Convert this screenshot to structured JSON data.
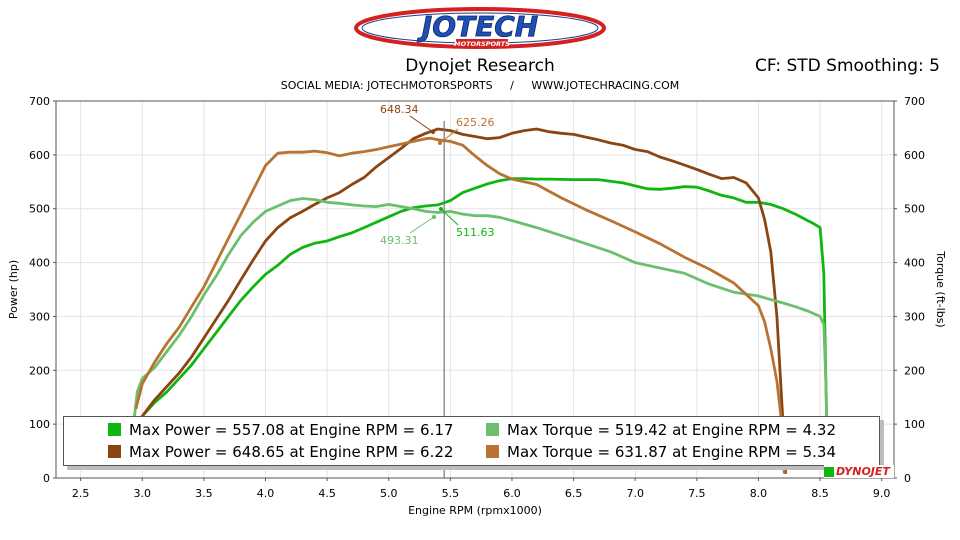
{
  "header": {
    "title": "Dynojet Research",
    "cf": "CF: STD Smoothing: 5",
    "social": "SOCIAL MEDIA: JOTECHMOTORSPORTS     /     WWW.JOTECHRACING.COM",
    "logo_text": "JOTECH",
    "logo_sub": "MOTORSPORTS"
  },
  "badge": {
    "dynojet": "DYNOJET"
  },
  "chart_data": {
    "type": "line",
    "xlabel": "Engine RPM (rpmx1000)",
    "ylabel": "Power (hp)",
    "y2label": "Torque (ft-lbs)",
    "xlim": [
      2.3,
      9.1
    ],
    "ylim": [
      0,
      700
    ],
    "xticks": [
      2.5,
      3.0,
      3.5,
      4.0,
      4.5,
      5.0,
      5.5,
      6.0,
      6.5,
      7.0,
      7.5,
      8.0,
      8.5,
      9.0
    ],
    "xtick_labels": [
      "2.5",
      "3.0",
      "3.5",
      "4.0",
      "4.5",
      "5.0",
      "5.5",
      "6.0",
      "6.5",
      "7.0",
      "7.5",
      "8.0",
      "8.5",
      "9.0"
    ],
    "yticks": [
      0,
      100,
      200,
      300,
      400,
      500,
      600,
      700
    ],
    "ytick_labels": [
      "0",
      "100",
      "200",
      "300",
      "400",
      "500",
      "600",
      "700"
    ],
    "cursor_x": 5.45,
    "series": [
      {
        "color": "#11b511",
        "x": [
          2.93,
          3.0,
          3.1,
          3.2,
          3.3,
          3.4,
          3.5,
          3.6,
          3.7,
          3.8,
          3.9,
          4.0,
          4.1,
          4.2,
          4.3,
          4.4,
          4.5,
          4.6,
          4.7,
          4.8,
          4.9,
          5.0,
          5.1,
          5.2,
          5.3,
          5.4,
          5.5,
          5.6,
          5.7,
          5.8,
          5.9,
          6.0,
          6.1,
          6.2,
          6.3,
          6.5,
          6.7,
          6.9,
          7.1,
          7.2,
          7.3,
          7.4,
          7.5,
          7.6,
          7.7,
          7.8,
          7.9,
          8.0,
          8.1,
          8.2,
          8.3,
          8.4,
          8.45,
          8.5,
          8.53,
          8.55,
          8.56
        ],
        "y": [
          95,
          115,
          140,
          160,
          185,
          210,
          240,
          270,
          300,
          330,
          355,
          378,
          395,
          415,
          428,
          436,
          440,
          448,
          455,
          465,
          475,
          485,
          495,
          502,
          505,
          507,
          515,
          530,
          538,
          546,
          552,
          556,
          556,
          555,
          555,
          554,
          554,
          548,
          537,
          536,
          538,
          541,
          540,
          533,
          525,
          520,
          512,
          512,
          508,
          500,
          490,
          478,
          472,
          465,
          380,
          150,
          10
        ]
      },
      {
        "color": "#8b4513",
        "x": [
          2.95,
          3.0,
          3.1,
          3.2,
          3.3,
          3.4,
          3.5,
          3.6,
          3.7,
          3.8,
          3.9,
          4.0,
          4.1,
          4.2,
          4.3,
          4.4,
          4.5,
          4.6,
          4.7,
          4.8,
          4.9,
          5.0,
          5.1,
          5.2,
          5.3,
          5.4,
          5.5,
          5.6,
          5.7,
          5.8,
          5.9,
          6.0,
          6.1,
          6.2,
          6.3,
          6.4,
          6.5,
          6.6,
          6.7,
          6.8,
          6.9,
          7.0,
          7.1,
          7.2,
          7.3,
          7.4,
          7.5,
          7.6,
          7.7,
          7.8,
          7.9,
          8.0,
          8.05,
          8.1,
          8.15,
          8.18,
          8.21,
          8.22
        ],
        "y": [
          95,
          115,
          145,
          170,
          195,
          225,
          260,
          295,
          330,
          368,
          405,
          440,
          465,
          483,
          495,
          508,
          520,
          530,
          545,
          558,
          578,
          595,
          612,
          630,
          640,
          648,
          645,
          638,
          634,
          630,
          632,
          640,
          645,
          648,
          643,
          640,
          638,
          633,
          628,
          622,
          618,
          610,
          606,
          596,
          589,
          581,
          573,
          564,
          556,
          558,
          548,
          520,
          480,
          420,
          300,
          180,
          60,
          10
        ]
      },
      {
        "color": "#6cbf6c",
        "x": [
          2.93,
          2.96,
          3.0,
          3.1,
          3.2,
          3.3,
          3.4,
          3.5,
          3.6,
          3.7,
          3.8,
          3.9,
          4.0,
          4.1,
          4.2,
          4.3,
          4.4,
          4.5,
          4.6,
          4.7,
          4.8,
          4.9,
          5.0,
          5.1,
          5.2,
          5.3,
          5.4,
          5.5,
          5.6,
          5.7,
          5.8,
          5.9,
          6.0,
          6.2,
          6.4,
          6.6,
          6.8,
          7.0,
          7.2,
          7.4,
          7.6,
          7.8,
          8.0,
          8.2,
          8.3,
          8.4,
          8.5,
          8.53,
          8.55,
          8.56
        ],
        "y": [
          100,
          160,
          185,
          205,
          235,
          265,
          300,
          340,
          375,
          415,
          450,
          475,
          495,
          505,
          515,
          519,
          517,
          512,
          510,
          507,
          505,
          504,
          508,
          504,
          500,
          495,
          493,
          495,
          490,
          487,
          487,
          484,
          478,
          465,
          450,
          435,
          420,
          400,
          390,
          380,
          360,
          345,
          338,
          325,
          318,
          310,
          300,
          285,
          160,
          10
        ]
      },
      {
        "color": "#b87333",
        "x": [
          2.95,
          3.0,
          3.1,
          3.2,
          3.3,
          3.4,
          3.5,
          3.6,
          3.7,
          3.8,
          3.9,
          4.0,
          4.1,
          4.2,
          4.3,
          4.4,
          4.5,
          4.6,
          4.7,
          4.8,
          4.9,
          5.0,
          5.1,
          5.2,
          5.3,
          5.34,
          5.4,
          5.5,
          5.6,
          5.7,
          5.8,
          5.9,
          6.0,
          6.1,
          6.2,
          6.4,
          6.6,
          6.8,
          7.0,
          7.2,
          7.4,
          7.6,
          7.8,
          8.0,
          8.05,
          8.1,
          8.15,
          8.18,
          8.2,
          8.21
        ],
        "y": [
          130,
          175,
          215,
          250,
          280,
          318,
          355,
          400,
          445,
          490,
          535,
          580,
          603,
          605,
          605,
          607,
          604,
          598,
          603,
          606,
          610,
          615,
          620,
          625,
          630,
          631,
          628,
          625,
          618,
          598,
          580,
          565,
          555,
          550,
          545,
          520,
          498,
          478,
          457,
          435,
          410,
          388,
          362,
          320,
          290,
          240,
          180,
          120,
          60,
          10
        ]
      }
    ],
    "annotations": [
      {
        "text": "648.34",
        "color": "#8b4513",
        "x": 6.22,
        "y": 648.65
      },
      {
        "text": "625.26",
        "color": "#b87333",
        "x": 5.34,
        "y": 631.87
      },
      {
        "text": "493.31",
        "color": "#6cbf6c",
        "x": 4.32,
        "y": 519.42
      },
      {
        "text": "511.63",
        "color": "#11b511",
        "x": 6.17,
        "y": 557.08
      }
    ],
    "legend": [
      {
        "color": "#11b511",
        "text": "Max Power = 557.08 at Engine RPM = 6.17"
      },
      {
        "color": "#6cbf6c",
        "text": "Max Torque = 519.42 at Engine RPM = 4.32"
      },
      {
        "color": "#8b4513",
        "text": "Max Power = 648.65 at Engine RPM = 6.22"
      },
      {
        "color": "#b87333",
        "text": "Max Torque = 631.87 at Engine RPM = 5.34"
      }
    ]
  }
}
